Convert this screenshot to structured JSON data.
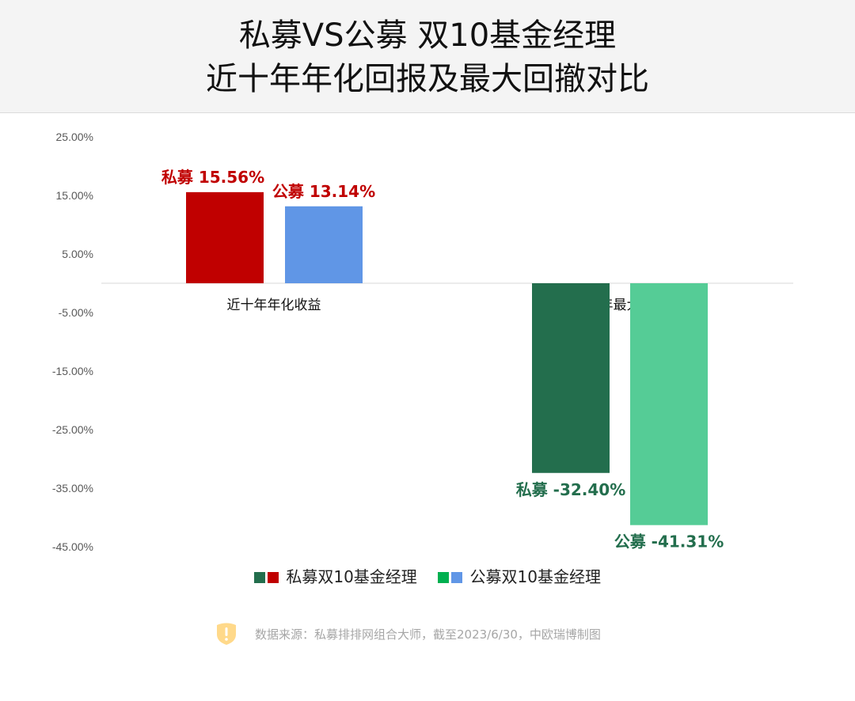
{
  "title": {
    "line1": "私募VS公募  双10基金经理",
    "line2": "近十年年化回报及最大回撤对比"
  },
  "chart_data": {
    "type": "bar",
    "categories": [
      "近十年年化收益",
      "近十年最大回撤"
    ],
    "series": [
      {
        "name": "私募双10基金经理",
        "values": [
          15.56,
          -32.4
        ],
        "colors": [
          "#c00000",
          "#236e4d"
        ],
        "labels": [
          "私募 15.56%",
          "私募 -32.40%"
        ]
      },
      {
        "name": "公募双10基金经理",
        "values": [
          13.14,
          -41.31
        ],
        "colors": [
          "#6096e6",
          "#55cc96"
        ],
        "labels": [
          "公募 13.14%",
          "公募 -41.31%"
        ]
      }
    ],
    "yticks": [
      "25.00%",
      "15.00%",
      "5.00%",
      "-5.00%",
      "-15.00%",
      "-25.00%",
      "-35.00%",
      "-45.00%"
    ],
    "ytick_values": [
      25,
      15,
      5,
      -5,
      -15,
      -25,
      -35,
      -45
    ],
    "ylim": [
      -45,
      25
    ],
    "legend_position": "bottom",
    "legend_swatches": [
      [
        "#236e4d",
        "#c00000"
      ],
      [
        "#00b050",
        "#6096e6"
      ]
    ],
    "label_colors": [
      "#c00000",
      "#236e4d"
    ]
  },
  "source": "数据来源：私募排排网组合大师，截至2023/6/30，中欧瑞博制图"
}
